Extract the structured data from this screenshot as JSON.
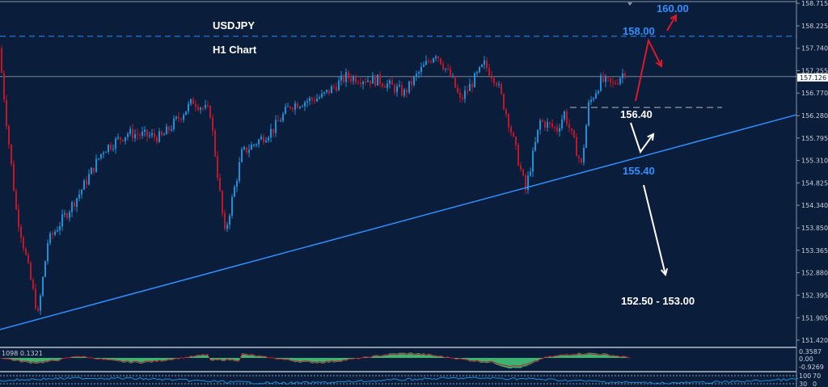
{
  "chart_data": {
    "type": "candlestick",
    "title": "USDJPY",
    "subtitle": "H1 Chart",
    "ylim": [
      151.42,
      158.715
    ],
    "y_ticks": [
      "158.715",
      "158.225",
      "157.740",
      "157.255",
      "156.770",
      "156.280",
      "155.795",
      "155.310",
      "154.825",
      "154.340",
      "153.850",
      "153.365",
      "152.880",
      "152.395",
      "151.905",
      "151.420"
    ],
    "current_price": "157.126",
    "price_path": [
      [
        0,
        157.74
      ],
      [
        3,
        156.16
      ],
      [
        7,
        154.24
      ],
      [
        16,
        151.96
      ],
      [
        20,
        153.54
      ],
      [
        33,
        154.59
      ],
      [
        43,
        155.55
      ],
      [
        53,
        155.9
      ],
      [
        67,
        155.81
      ],
      [
        80,
        156.6
      ],
      [
        87,
        156.34
      ],
      [
        93,
        153.71
      ],
      [
        100,
        155.46
      ],
      [
        113,
        155.99
      ],
      [
        120,
        156.51
      ],
      [
        133,
        156.69
      ],
      [
        143,
        157.12
      ],
      [
        157,
        157.04
      ],
      [
        167,
        156.77
      ],
      [
        173,
        157.21
      ],
      [
        180,
        157.65
      ],
      [
        187,
        157.04
      ],
      [
        190,
        156.6
      ],
      [
        200,
        157.39
      ],
      [
        205,
        157.04
      ],
      [
        210,
        156.16
      ],
      [
        217,
        154.67
      ],
      [
        223,
        156.16
      ],
      [
        230,
        155.99
      ],
      [
        233,
        156.34
      ],
      [
        240,
        155.2
      ],
      [
        243,
        156.51
      ],
      [
        248,
        157.04
      ],
      [
        253,
        156.95
      ],
      [
        258,
        157.25
      ]
    ],
    "levels": [
      {
        "label": "160.00",
        "price": 160.0,
        "color": "#2f8fff"
      },
      {
        "label": "158.00",
        "price": 158.0,
        "color": "#2f8fff",
        "line": "dashed"
      },
      {
        "label": "156.40",
        "price": 156.4,
        "color": "#ffffff",
        "line": "dashed"
      },
      {
        "label": "155.40",
        "price": 155.4,
        "color": "#2f8fff"
      },
      {
        "label": "152.50 - 153.00",
        "price": 152.75,
        "color": "#ffffff"
      }
    ],
    "trendline": {
      "start_price": 151.65,
      "end_price": 156.3,
      "color": "#2f8fff"
    },
    "oscillator": {
      "label": "1098 0.1321",
      "ticks": [
        "0.3587",
        "0.00",
        "-0.9269"
      ]
    },
    "lower_indicator": {
      "ticks": [
        "100",
        "70",
        "30",
        "0"
      ]
    },
    "colors": {
      "background": "#0a1d3a",
      "bull": "#1f8fd6",
      "bear": "#c0182a",
      "histogram": "#3cb371",
      "signal": "#c0182a"
    }
  }
}
